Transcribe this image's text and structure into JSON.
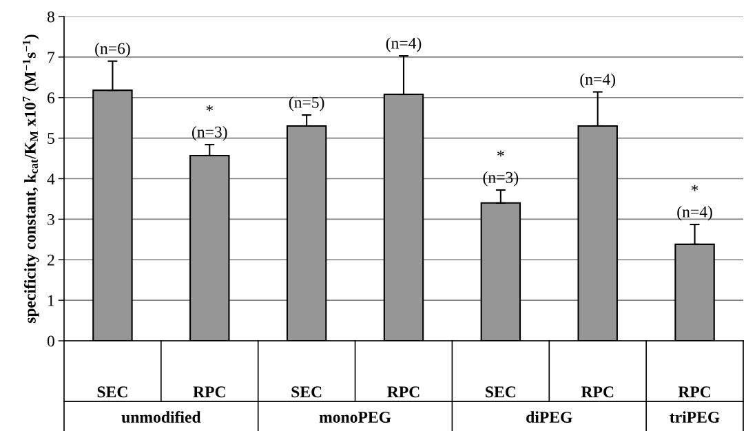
{
  "chart_data": {
    "type": "bar",
    "ylabel": "specificity constant, k$_{cat}$/K$_{M}$ x10$^{7}$ (M$^{−1}$s$^{−1}$)",
    "categories": [
      "SEC",
      "RPC",
      "SEC",
      "RPC",
      "SEC",
      "RPC",
      "RPC"
    ],
    "values": [
      6.18,
      4.57,
      5.3,
      6.08,
      3.4,
      5.3,
      2.38
    ],
    "errors": [
      [
        6.18,
        6.9
      ],
      [
        4.57,
        4.84
      ],
      [
        5.3,
        5.57
      ],
      [
        6.08,
        7.03
      ],
      [
        3.4,
        3.72
      ],
      [
        5.3,
        6.14
      ],
      [
        2.38,
        2.87
      ]
    ],
    "color": "#969696",
    "annotations": [
      {
        "text": "(n=6)",
        "y": 6.9
      },
      {
        "text": "*\n(n=3)",
        "y": 4.84
      },
      {
        "text": "(n=5)",
        "y": 5.57
      },
      {
        "text": "(n=4)",
        "y": 7.03
      },
      {
        "text": "*\n(n=3)",
        "y": 3.72
      },
      {
        "text": "(n=4)",
        "y": 6.14
      },
      {
        "text": "*\n(n=4)",
        "y": 2.87
      },
      "unmodified",
      "monoPEG",
      "diPEG",
      "triPEG"
    ],
    "ylim": [
      0,
      8
    ],
    "yticks": [
      0,
      1,
      2,
      3,
      4,
      5,
      6,
      7,
      8
    ],
    "grid": "y",
    "legend": false
  }
}
